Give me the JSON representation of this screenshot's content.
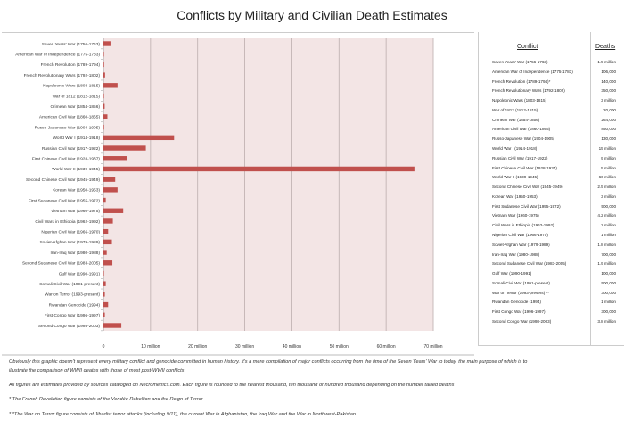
{
  "title": "Conflicts by Military and Civilian Death Estimates",
  "chart_data": {
    "type": "bar",
    "orientation": "horizontal",
    "categories": [
      "Seven Years' War (1756-1763)",
      "American War of Independence (1775-1783)",
      "French Revolution (1789-1794)",
      "French Revolutionary Wars (1792-1802)",
      "Napoleonic Wars (1803-1815)",
      "War of 1812 (1812-1815)",
      "Crimean War (1854-1856)",
      "American Civil War (1860-1865)",
      "Russo-Japanese War (1904-1905)",
      "World War I (1914-1918)",
      "Russian Civil War (1917-1922)",
      "First Chinese Civil War (1928-1937)",
      "World War II (1939-1945)",
      "Second Chinese Civil War (1945-1949)",
      "Korean War (1950-1953)",
      "First Sudanese Civil War (1955-1972)",
      "Vietnam War (1960-1975)",
      "Civil Wars in Ethiopia (1962-1992)",
      "Nigerian Civil War (1966-1970)",
      "Soviet-Afghan War (1979-1989)",
      "Iran-Iraq War (1980-1988)",
      "Second Sudanese Civil War (1983-2005)",
      "Gulf War (1990-1991)",
      "Somali Civil War (1991-present)",
      "War on Terror (1993-present)",
      "Rwandan Genocide (1994)",
      "First Congo War (1996-1997)",
      "Second Congo War (1998-2003)"
    ],
    "values": [
      1500000,
      106000,
      140000,
      350000,
      3000000,
      20000,
      264000,
      850000,
      130000,
      15000000,
      9000000,
      5000000,
      66000000,
      2500000,
      3000000,
      500000,
      4200000,
      2000000,
      1000000,
      1800000,
      700000,
      1900000,
      100000,
      500000,
      300000,
      1000000,
      300000,
      3800000
    ],
    "xlim": [
      0,
      70000000
    ],
    "xticks": [
      0,
      10000000,
      20000000,
      30000000,
      40000000,
      50000000,
      60000000,
      70000000
    ],
    "xtick_labels": [
      "0",
      "10 million",
      "20 million",
      "30 million",
      "40 million",
      "50 million",
      "60 million",
      "70 million"
    ],
    "grid": true,
    "bar_color": "#c0504d",
    "plot_background": "#f3e5e5"
  },
  "table": {
    "headers": [
      "Conflict",
      "Deaths"
    ],
    "rows": [
      [
        "Seven Years' War (1756-1763)",
        "1.5 million"
      ],
      [
        "American War of Independence (1775-1783)",
        "106,000"
      ],
      [
        "French Revolution (1789-1794)*",
        "140,000"
      ],
      [
        "French Revolutionary Wars (1792-1802)",
        "350,000"
      ],
      [
        "Napoleonic Wars (1803-1815)",
        "3 million"
      ],
      [
        "War of 1812 (1812-1815)",
        "20,000"
      ],
      [
        "Crimean War (1854-1856)",
        "264,000"
      ],
      [
        "American Civil War (1860-1865)",
        "850,000"
      ],
      [
        "Russo-Japanese War (1904-1905)",
        "130,000"
      ],
      [
        "World War I (1914-1918)",
        "15 million"
      ],
      [
        "Russian Civil War (1917-1922)",
        "9 million"
      ],
      [
        "First Chinese Civil War (1928-1937)",
        "5 million"
      ],
      [
        "World War II (1939-1945)",
        "66 million"
      ],
      [
        "Second Chinese Civil War (1945-1949)",
        "2.5 million"
      ],
      [
        "Korean War (1950-1953)",
        "3 million"
      ],
      [
        "First Sudanese Civil War (1955-1972)",
        "500,000"
      ],
      [
        "Vietnam War (1960-1975)",
        "4.2 million"
      ],
      [
        "Civil Wars in Ethiopia (1962-1992)",
        "2 million"
      ],
      [
        "Nigerian Civil War (1966-1970)",
        "1 million"
      ],
      [
        "Soviet-Afghan War (1979-1989)",
        "1.8 million"
      ],
      [
        "Iran-Iraq War (1980-1988)",
        "700,000"
      ],
      [
        "Second Sudanese Civil War (1983-2005)",
        "1.9 million"
      ],
      [
        "Gulf War (1990-1991)",
        "100,000"
      ],
      [
        "Somali Civil War (1991-present)",
        "500,000"
      ],
      [
        "War on Terror (1993-present) **",
        "300,000"
      ],
      [
        "Rwandan Genocide (1994)",
        "1 million"
      ],
      [
        "First Congo War (1996-1997)",
        "300,000"
      ],
      [
        "Second Congo War (1998-2003)",
        "3.8 million"
      ]
    ]
  },
  "notes": [
    "Obviously this graphic doesn't represent every military conflict and genocide committed in human history. It's a mere compilation of major conflicts occurring from the time of the Seven Years' War to today, the main purpose of which is to",
    "illustrate the comparison of WWII deaths with those of most post-WWII conflicts",
    "All figures are estimates provided by sources cataloged on Necrometrics.com. Each figure is rounded to the nearest thousand, ten thousand or hundred thousand depending on the number tallied deaths",
    "* The French Revolution figure consists of the Vendée Rebellion and the Reign of Terror",
    "* *The War on Terror figure consists of Jihadist terror attacks (including 9/11), the current War in Afghanistan, the Iraq War and the War in Northwest-Pakistan"
  ]
}
